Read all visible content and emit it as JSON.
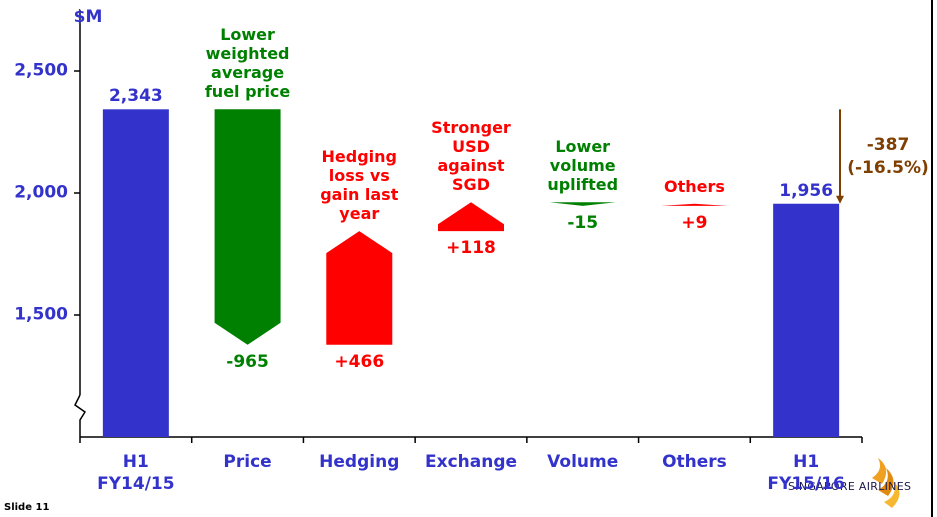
{
  "chart_data": {
    "type": "waterfall",
    "y_label": "$M",
    "categories": [
      "H1\nFY14/15",
      "Price",
      "Hedging",
      "Exchange",
      "Volume",
      "Others",
      "H1\nFY15/16"
    ],
    "measure": [
      "absolute",
      "relative",
      "relative",
      "relative",
      "relative",
      "relative",
      "absolute"
    ],
    "descriptions": [
      null,
      "Lower\nweighted\naverage\nfuel price",
      "Hedging\nloss vs\ngain last\nyear",
      "Stronger\nUSD\nagainst\nSGD",
      "Lower\nvolume\nuplifted",
      "Others",
      null
    ],
    "series": [
      {
        "values": [
          2343,
          -965,
          466,
          118,
          -15,
          9,
          1956
        ],
        "value_labels": [
          "2,343",
          "-965",
          "+466",
          "+118",
          "-15",
          "+9",
          "1,956"
        ],
        "colors": [
          "#3333cc",
          "#008000",
          "#ff0000",
          "#ff0000",
          "#008000",
          "#ff0000",
          "#3333cc"
        ]
      }
    ],
    "annotation": "-387\n(-16.5%)",
    "annotation_color": "#7f3f00",
    "ylim": [
      1000,
      2750
    ],
    "yticks": [
      {
        "value": 1500,
        "label": "1,500"
      },
      {
        "value": 2000,
        "label": "2,000"
      },
      {
        "value": 2500,
        "label": "2,500"
      }
    ],
    "axis_color": "#3333cc"
  },
  "footer": {
    "slide": "Slide 11",
    "logo": "SINGAPORE AIRLINES"
  }
}
